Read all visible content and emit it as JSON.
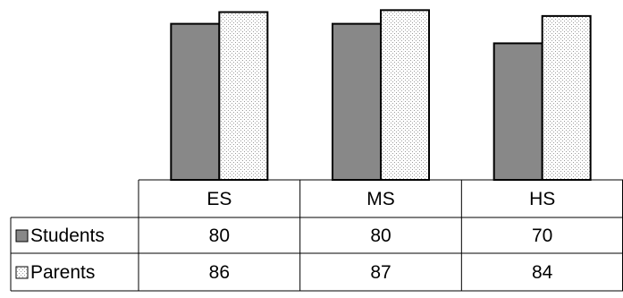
{
  "chart_data": {
    "type": "bar",
    "categories": [
      "ES",
      "MS",
      "HS"
    ],
    "series": [
      {
        "name": "Students",
        "values": [
          80,
          80,
          70
        ],
        "color": "#888888",
        "pattern": "solid"
      },
      {
        "name": "Parents",
        "values": [
          86,
          87,
          84
        ],
        "color": "#ffffff",
        "pattern": "dotted"
      }
    ],
    "ylim": [
      0,
      90
    ],
    "grid": false,
    "legend": "data-table"
  }
}
